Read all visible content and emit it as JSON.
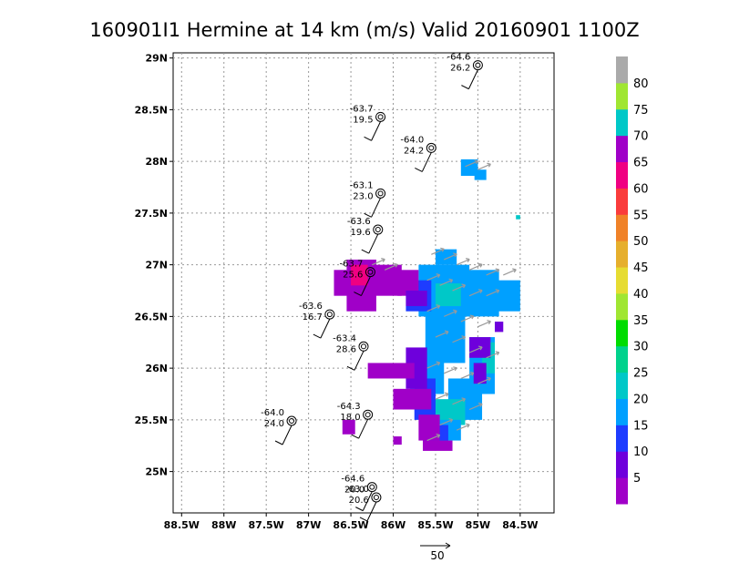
{
  "chart_data": {
    "type": "heatmap",
    "title": "160901I1 Hermine at 14 km (m/s) Valid 20160901 1100Z",
    "x_ticks": [
      "88.5W",
      "88W",
      "87.5W",
      "87W",
      "86.5W",
      "86W",
      "85.5W",
      "85W",
      "84.5W"
    ],
    "y_ticks": [
      "29N",
      "28.5N",
      "28N",
      "27.5N",
      "27N",
      "26.5N",
      "26N",
      "25.5N",
      "25N"
    ],
    "xlim": [
      -88.6,
      -84.1
    ],
    "ylim": [
      24.6,
      29.05
    ],
    "colorbar": {
      "levels": [
        "5",
        "10",
        "15",
        "20",
        "25",
        "30",
        "35",
        "40",
        "45",
        "50",
        "55",
        "60",
        "65",
        "70",
        "75",
        "80"
      ],
      "colors": [
        "#a000c8",
        "#6e00dc",
        "#1e3cff",
        "#00a0ff",
        "#00c8c8",
        "#00d28c",
        "#00dc00",
        "#a0e632",
        "#e6dc32",
        "#e6af2d",
        "#f08228",
        "#fa3c3c",
        "#f00082",
        "#a000c8",
        "#00c8c8",
        "#a0e632",
        "#aaaaaa"
      ]
    },
    "observations": [
      {
        "lon": -85.0,
        "lat": 28.93,
        "temp": "-64.6",
        "speed": "26.2"
      },
      {
        "lon": -86.15,
        "lat": 28.43,
        "temp": "-63.7",
        "speed": "19.5"
      },
      {
        "lon": -85.55,
        "lat": 28.13,
        "temp": "-64.0",
        "speed": "24.2"
      },
      {
        "lon": -86.15,
        "lat": 27.69,
        "temp": "-63.1",
        "speed": "23.0"
      },
      {
        "lon": -86.18,
        "lat": 27.34,
        "temp": "-63.6",
        "speed": "19.6"
      },
      {
        "lon": -86.27,
        "lat": 26.93,
        "temp": "-63.7",
        "speed": "25.6"
      },
      {
        "lon": -86.75,
        "lat": 26.52,
        "temp": "-63.6",
        "speed": "16.7"
      },
      {
        "lon": -86.35,
        "lat": 26.21,
        "temp": "-63.4",
        "speed": "28.6"
      },
      {
        "lon": -86.3,
        "lat": 25.55,
        "temp": "-64.3",
        "speed": "18.0"
      },
      {
        "lon": -87.2,
        "lat": 25.49,
        "temp": "-64.0",
        "speed": "24.0"
      },
      {
        "lon": -86.25,
        "lat": 24.85,
        "temp": "-64.6",
        "speed": "20.0"
      },
      {
        "lon": -86.2,
        "lat": 24.75,
        "temp": "-63.0",
        "speed": "20.6"
      }
    ],
    "reference_vector": "50"
  }
}
